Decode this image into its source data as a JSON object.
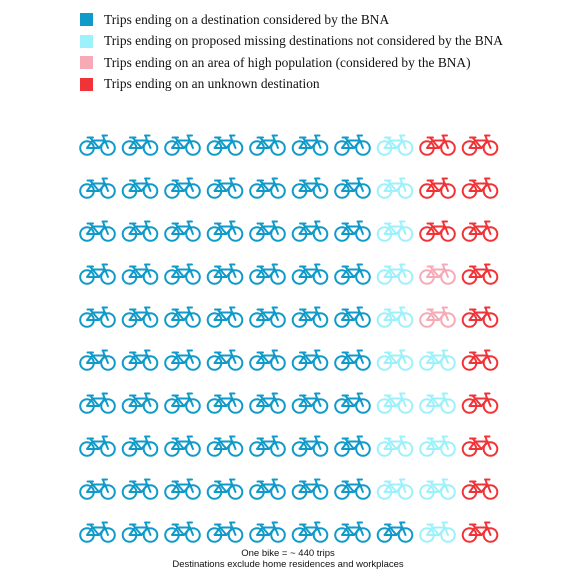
{
  "chart_data": {
    "type": "pictogram",
    "unit_icon": "bicycle-icon",
    "rows": 10,
    "columns": 10,
    "legend_position": "top-left",
    "series": [
      {
        "name": "Trips ending on a destination considered by the BNA",
        "color": "#0f9ac9"
      },
      {
        "name": "Trips ending on proposed missing destinations not considered by the BNA",
        "color": "#9cf1fb"
      },
      {
        "name": "Trips ending on an area of high population (considered by the BNA)",
        "color": "#f7aab6"
      },
      {
        "name": "Trips ending on an unknown destination",
        "color": "#f13337"
      }
    ],
    "grid": [
      [
        0,
        0,
        0,
        0,
        0,
        0,
        0,
        1,
        3,
        3
      ],
      [
        0,
        0,
        0,
        0,
        0,
        0,
        0,
        1,
        3,
        3
      ],
      [
        0,
        0,
        0,
        0,
        0,
        0,
        0,
        1,
        3,
        3
      ],
      [
        0,
        0,
        0,
        0,
        0,
        0,
        0,
        1,
        2,
        3
      ],
      [
        0,
        0,
        0,
        0,
        0,
        0,
        0,
        1,
        2,
        3
      ],
      [
        0,
        0,
        0,
        0,
        0,
        0,
        0,
        1,
        1,
        3
      ],
      [
        0,
        0,
        0,
        0,
        0,
        0,
        0,
        1,
        1,
        3
      ],
      [
        0,
        0,
        0,
        0,
        0,
        0,
        0,
        1,
        1,
        3
      ],
      [
        0,
        0,
        0,
        0,
        0,
        0,
        0,
        1,
        1,
        3
      ],
      [
        0,
        0,
        0,
        0,
        0,
        0,
        0,
        0,
        1,
        3
      ]
    ],
    "notes": [
      "One bike = ~ 440 trips",
      "Destinations exclude home residences and workplaces"
    ]
  }
}
